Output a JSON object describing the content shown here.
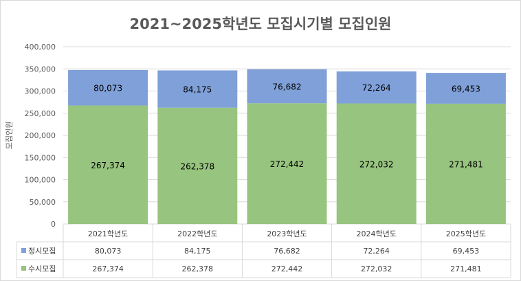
{
  "chart_data": {
    "type": "bar",
    "stacked": true,
    "title": "2021~2025학년도  모집시기별 모집인원",
    "ylabel": "모집인원",
    "xlabel": "",
    "ylim": [
      0,
      400000
    ],
    "yticks": [
      0,
      50000,
      100000,
      150000,
      200000,
      250000,
      300000,
      350000,
      400000
    ],
    "ytick_labels": [
      "0",
      "50,000",
      "100,000",
      "150,000",
      "200,000",
      "250,000",
      "300,000",
      "350,000",
      "400,000"
    ],
    "grid": true,
    "legend": "data-table",
    "categories": [
      "2021학년도",
      "2022학년도",
      "2023학년도",
      "2024학년도",
      "2025학년도"
    ],
    "series": [
      {
        "name": "수시모집",
        "color": "#97c47e",
        "values": [
          267374,
          262378,
          272442,
          272032,
          271481
        ],
        "labels": [
          "267,374",
          "262,378",
          "272,442",
          "272,032",
          "271,481"
        ]
      },
      {
        "name": "정시모집",
        "color": "#7fa0d8",
        "values": [
          80073,
          84175,
          76682,
          72264,
          69453
        ],
        "labels": [
          "80,073",
          "84,175",
          "76,682",
          "72,264",
          "69,453"
        ]
      }
    ]
  }
}
